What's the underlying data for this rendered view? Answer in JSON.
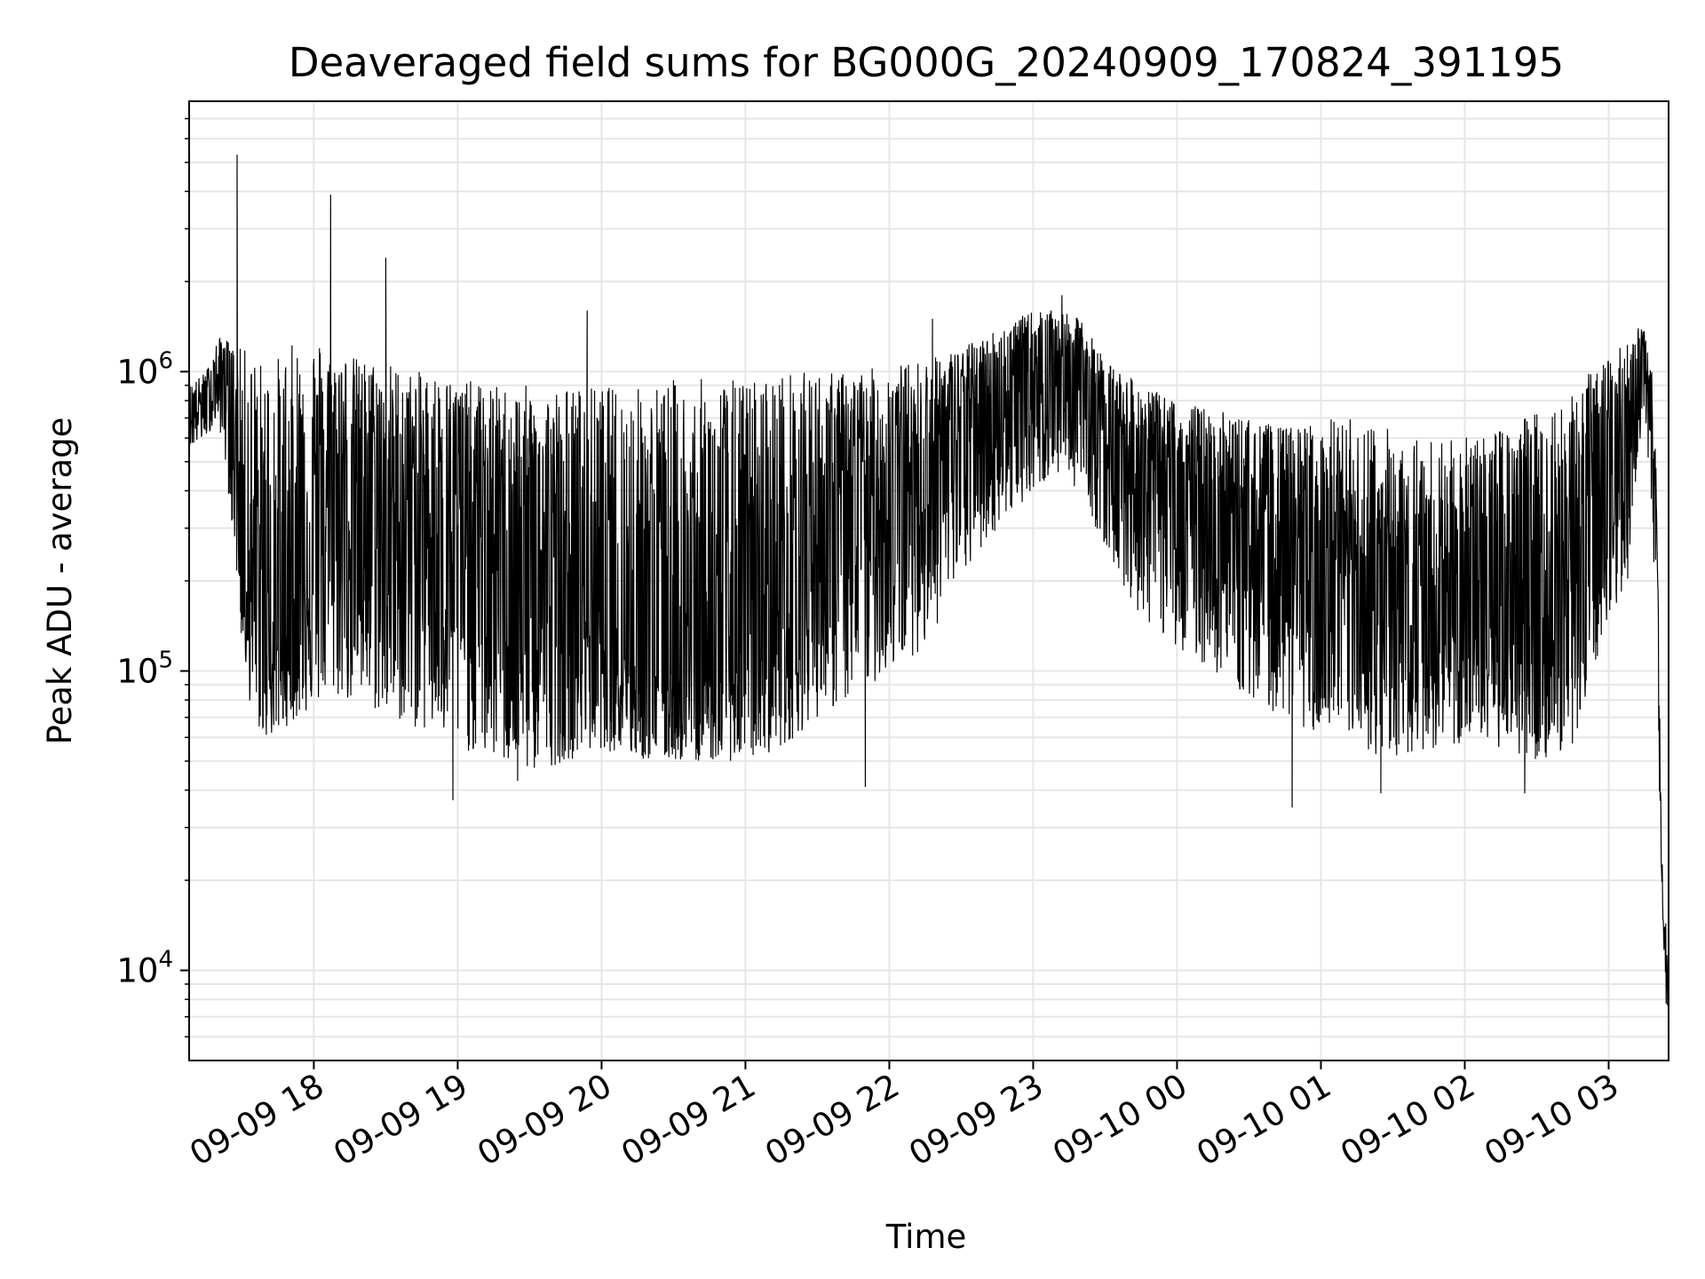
{
  "chart_data": {
    "type": "line",
    "title": "Deaveraged field sums for BG000G_20240909_170824_391195",
    "xlabel": "Time",
    "ylabel": "Peak ADU - average",
    "yscale": "log",
    "ylim": [
      5000,
      8000000
    ],
    "xlim": [
      "2024-09-09 17:08",
      "2024-09-10 03:25"
    ],
    "grid": true,
    "line_color": "#000000",
    "grid_color": "#e6e6e6",
    "x_ticks": [
      {
        "value": "2024-09-09 18:00",
        "label": "09-09 18"
      },
      {
        "value": "2024-09-09 19:00",
        "label": "09-09 19"
      },
      {
        "value": "2024-09-09 20:00",
        "label": "09-09 20"
      },
      {
        "value": "2024-09-09 21:00",
        "label": "09-09 21"
      },
      {
        "value": "2024-09-09 22:00",
        "label": "09-09 22"
      },
      {
        "value": "2024-09-09 23:00",
        "label": "09-09 23"
      },
      {
        "value": "2024-09-10 00:00",
        "label": "09-10 00"
      },
      {
        "value": "2024-09-10 01:00",
        "label": "09-10 01"
      },
      {
        "value": "2024-09-10 02:00",
        "label": "09-10 02"
      },
      {
        "value": "2024-09-10 03:00",
        "label": "09-10 03"
      }
    ],
    "y_ticks": [
      {
        "value": 10000,
        "base": "10",
        "exp": "4"
      },
      {
        "value": 100000,
        "base": "10",
        "exp": "5"
      },
      {
        "value": 1000000,
        "base": "10",
        "exp": "6"
      }
    ],
    "series": [
      {
        "x": [
          "2024-09-09 17:08",
          "2024-09-09 17:15",
          "2024-09-09 17:20",
          "2024-09-09 17:23",
          "2024-09-09 17:27",
          "2024-09-09 17:30",
          "2024-09-09 17:33",
          "2024-09-09 17:38",
          "2024-09-09 17:43",
          "2024-09-09 17:48",
          "2024-09-09 17:55",
          "2024-09-09 18:05",
          "2024-09-09 18:10",
          "2024-09-09 18:20",
          "2024-09-09 18:30",
          "2024-09-09 18:40",
          "2024-09-09 18:50",
          "2024-09-09 19:00",
          "2024-09-09 19:15",
          "2024-09-09 19:30",
          "2024-09-09 19:45",
          "2024-09-09 20:00",
          "2024-09-09 20:15",
          "2024-09-09 20:30",
          "2024-09-09 20:45",
          "2024-09-09 21:00",
          "2024-09-09 21:15",
          "2024-09-09 21:30",
          "2024-09-09 21:45",
          "2024-09-09 22:00",
          "2024-09-09 22:15",
          "2024-09-09 22:30",
          "2024-09-09 22:45",
          "2024-09-09 23:00",
          "2024-09-09 23:10",
          "2024-09-09 23:20",
          "2024-09-09 23:30",
          "2024-09-09 23:45",
          "2024-09-10 00:00",
          "2024-09-10 00:15",
          "2024-09-10 00:30",
          "2024-09-10 00:45",
          "2024-09-10 01:00",
          "2024-09-10 01:15",
          "2024-09-10 01:30",
          "2024-09-10 01:45",
          "2024-09-10 02:00",
          "2024-09-10 02:15",
          "2024-09-10 02:30",
          "2024-09-10 02:45",
          "2024-09-10 03:00",
          "2024-09-10 03:08",
          "2024-09-10 03:12",
          "2024-09-10 03:15",
          "2024-09-10 03:18",
          "2024-09-10 03:20",
          "2024-09-10 03:22",
          "2024-09-10 03:24",
          "2024-09-10 03:25"
        ],
        "y": [
          750000,
          800000,
          900000,
          1100000,
          600000,
          300000,
          200000,
          150000,
          120000,
          130000,
          250000,
          350000,
          400000,
          380000,
          300000,
          350000,
          330000,
          300000,
          250000,
          200000,
          170000,
          160000,
          120000,
          100000,
          100000,
          130000,
          180000,
          300000,
          350000,
          400000,
          500000,
          700000,
          800000,
          1000000,
          1100000,
          1000000,
          700000,
          500000,
          400000,
          350000,
          300000,
          250000,
          200000,
          180000,
          170000,
          160000,
          180000,
          200000,
          180000,
          190000,
          400000,
          600000,
          900000,
          1300000,
          700000,
          250000,
          25000,
          10000,
          8000
        ],
        "envelope_high": [
          900000,
          1000000,
          1300000,
          1300000,
          1200000,
          1200000,
          1200000,
          1100000,
          1100000,
          1200000,
          1300000,
          1300000,
          1200000,
          1100000,
          1100000,
          1000000,
          1000000,
          950000,
          900000,
          900000,
          900000,
          900000,
          900000,
          950000,
          950000,
          950000,
          1000000,
          1000000,
          1000000,
          1050000,
          1100000,
          1200000,
          1400000,
          1600000,
          1600000,
          1500000,
          1100000,
          900000,
          800000,
          750000,
          700000,
          650000,
          700000,
          700000,
          650000,
          600000,
          600000,
          650000,
          750000,
          900000,
          1100000,
          1300000,
          1400000,
          1400000,
          1000000,
          450000,
          27000,
          14000,
          9000
        ],
        "envelope_low": [
          550000,
          600000,
          700000,
          500000,
          250000,
          120000,
          80000,
          60000,
          60000,
          65000,
          70000,
          80000,
          80000,
          75000,
          70000,
          65000,
          60000,
          55000,
          50000,
          45000,
          50000,
          55000,
          50000,
          50000,
          50000,
          50000,
          55000,
          70000,
          80000,
          100000,
          120000,
          200000,
          300000,
          400000,
          450000,
          400000,
          250000,
          150000,
          120000,
          100000,
          80000,
          70000,
          60000,
          55000,
          50000,
          55000,
          55000,
          55000,
          50000,
          55000,
          150000,
          200000,
          500000,
          800000,
          300000,
          100000,
          20000,
          7000,
          6500
        ]
      }
    ],
    "spikes": [
      {
        "x": "2024-09-09 17:28",
        "y": 5300000
      },
      {
        "x": "2024-09-09 18:07",
        "y": 3900000
      },
      {
        "x": "2024-09-09 18:30",
        "y": 2400000
      },
      {
        "x": "2024-09-09 19:54",
        "y": 1600000
      },
      {
        "x": "2024-09-09 22:18",
        "y": 1500000
      },
      {
        "x": "2024-09-09 23:12",
        "y": 1800000
      },
      {
        "x": "2024-09-09 18:58",
        "y": 37000
      },
      {
        "x": "2024-09-09 21:50",
        "y": 41000
      },
      {
        "x": "2024-09-10 00:48",
        "y": 35000
      },
      {
        "x": "2024-09-10 01:25",
        "y": 39000
      },
      {
        "x": "2024-09-10 02:25",
        "y": 39000
      },
      {
        "x": "2024-09-09 19:25",
        "y": 43000
      }
    ]
  }
}
